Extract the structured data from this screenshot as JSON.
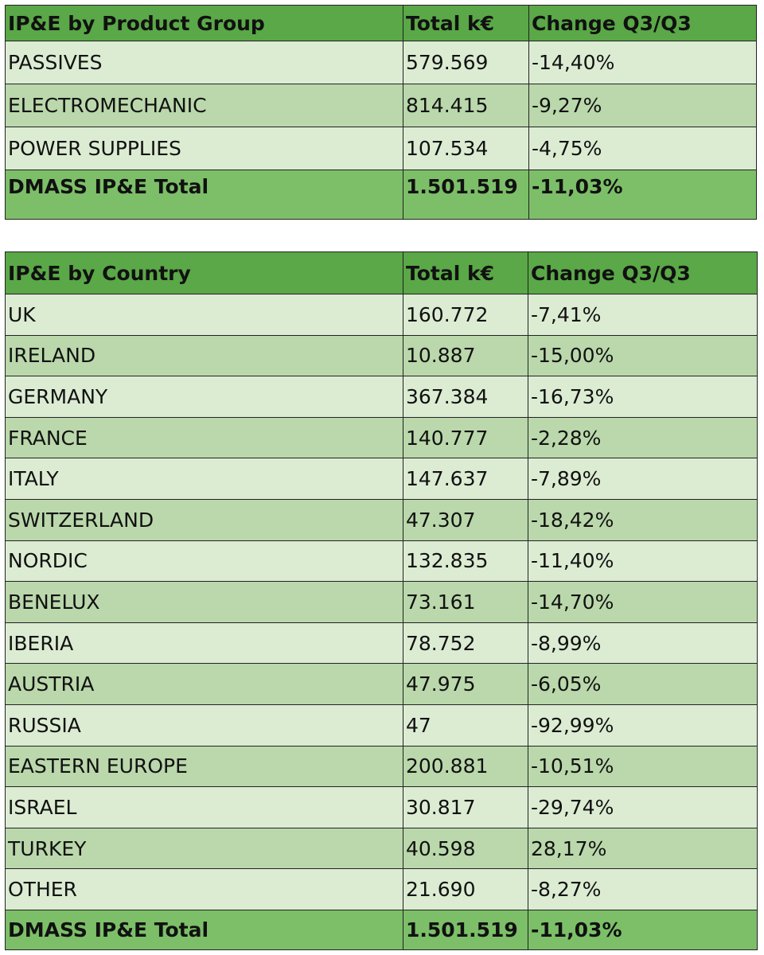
{
  "product_table": {
    "headers": [
      "IP&E by Product Group",
      "Total k€",
      "Change Q3/Q3"
    ],
    "rows": [
      [
        "PASSIVES",
        "579.569",
        "-14,40%"
      ],
      [
        "ELECTROMECHANIC",
        "814.415",
        "-9,27%"
      ],
      [
        "POWER SUPPLIES",
        "107.534",
        "-4,75%"
      ]
    ],
    "total": [
      "DMASS IP&E Total",
      "1.501.519",
      "-11,03%"
    ]
  },
  "country_table": {
    "headers": [
      "IP&E by Country",
      "Total k€",
      "Change Q3/Q3"
    ],
    "rows": [
      [
        "UK",
        "160.772",
        "-7,41%"
      ],
      [
        "IRELAND",
        "10.887",
        "-15,00%"
      ],
      [
        "GERMANY",
        "367.384",
        "-16,73%"
      ],
      [
        "FRANCE",
        "140.777",
        "-2,28%"
      ],
      [
        "ITALY",
        "147.637",
        "-7,89%"
      ],
      [
        "SWITZERLAND",
        "47.307",
        "-18,42%"
      ],
      [
        "NORDIC",
        "132.835",
        "-11,40%"
      ],
      [
        "BENELUX",
        "73.161",
        "-14,70%"
      ],
      [
        "IBERIA",
        "78.752",
        "-8,99%"
      ],
      [
        "AUSTRIA",
        "47.975",
        "-6,05%"
      ],
      [
        "RUSSIA",
        "47",
        "-92,99%"
      ],
      [
        "EASTERN EUROPE",
        "200.881",
        "-10,51%"
      ],
      [
        "ISRAEL",
        "30.817",
        "-29,74%"
      ],
      [
        "TURKEY",
        "40.598",
        "28,17%"
      ],
      [
        "OTHER",
        "21.690",
        "-8,27%"
      ]
    ],
    "total": [
      "DMASS IP&E Total",
      "1.501.519",
      "-11,03%"
    ]
  }
}
